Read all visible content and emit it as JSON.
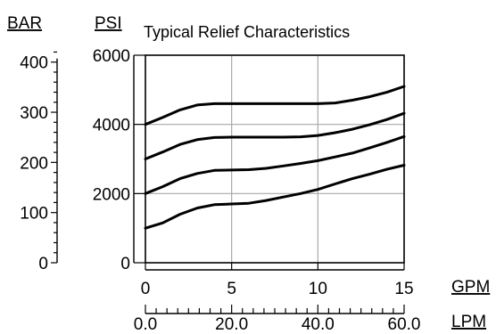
{
  "chart_data": {
    "type": "line",
    "title": "Typical Relief Characteristics",
    "grid": true,
    "x_primary": {
      "label": "GPM",
      "range": [
        0,
        15
      ],
      "ticks": [
        0,
        5,
        10,
        15
      ],
      "tick_labels": [
        "0",
        "5",
        "10",
        "15"
      ]
    },
    "x_secondary": {
      "label": "LPM",
      "range": [
        0,
        60
      ],
      "ticks": [
        0,
        20,
        40,
        60
      ],
      "tick_labels": [
        "0.0",
        "20.0",
        "40.0",
        "60.0"
      ],
      "minor_step": 2.5
    },
    "y_primary": {
      "label": "PSI",
      "range": [
        0,
        6000
      ],
      "ticks": [
        0,
        2000,
        4000,
        6000
      ],
      "tick_labels": [
        "0",
        "2000",
        "4000",
        "6000"
      ]
    },
    "y_secondary": {
      "label": "BAR",
      "range": [
        0,
        413.7
      ],
      "ticks": [
        0,
        100,
        200,
        300,
        400
      ],
      "tick_labels": [
        "0",
        "100",
        "200",
        "300",
        "400"
      ],
      "minor_step": 20
    },
    "series": [
      {
        "x": [
          0,
          1,
          2,
          3,
          4,
          5,
          6,
          7,
          8,
          9,
          10,
          11,
          12,
          13,
          14,
          15
        ],
        "y": [
          1000,
          1150,
          1400,
          1580,
          1680,
          1700,
          1720,
          1800,
          1900,
          2000,
          2120,
          2280,
          2430,
          2560,
          2700,
          2820
        ]
      },
      {
        "x": [
          0,
          1,
          2,
          3,
          4,
          5,
          6,
          7,
          8,
          9,
          10,
          11,
          12,
          13,
          14,
          15
        ],
        "y": [
          2000,
          2200,
          2430,
          2580,
          2670,
          2680,
          2690,
          2730,
          2800,
          2870,
          2950,
          3060,
          3170,
          3320,
          3480,
          3650
        ]
      },
      {
        "x": [
          0,
          1,
          2,
          3,
          4,
          5,
          6,
          7,
          8,
          9,
          10,
          11,
          12,
          13,
          14,
          15
        ],
        "y": [
          3000,
          3200,
          3420,
          3560,
          3620,
          3630,
          3630,
          3630,
          3630,
          3640,
          3680,
          3760,
          3860,
          3990,
          4140,
          4320
        ]
      },
      {
        "x": [
          0,
          1,
          2,
          3,
          4,
          5,
          6,
          7,
          8,
          9,
          10,
          11,
          12,
          13,
          14,
          15
        ],
        "y": [
          4000,
          4200,
          4420,
          4560,
          4600,
          4600,
          4600,
          4600,
          4600,
          4600,
          4600,
          4620,
          4700,
          4800,
          4930,
          5100
        ]
      }
    ]
  }
}
